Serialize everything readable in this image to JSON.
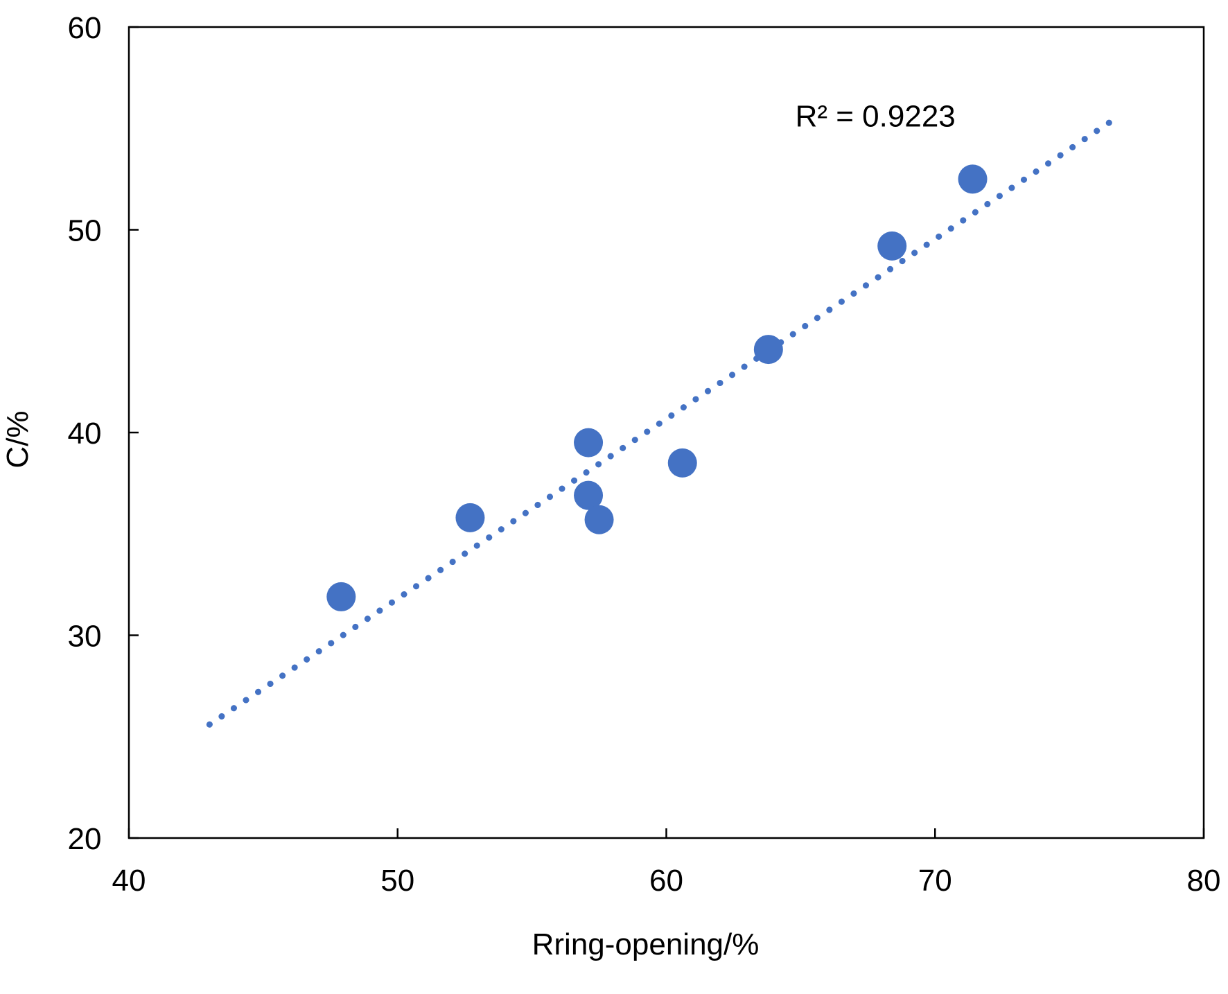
{
  "chart_data": {
    "type": "scatter",
    "title": "",
    "xlabel": "Rring-opening/%",
    "ylabel": "C/%",
    "xlim": [
      40,
      80
    ],
    "ylim": [
      20,
      60
    ],
    "xticks": [
      40,
      50,
      60,
      70,
      80
    ],
    "yticks": [
      20,
      30,
      40,
      50,
      60
    ],
    "grid": false,
    "legend": "none",
    "series": [
      {
        "points": [
          {
            "x": 47.9,
            "y": 31.9
          },
          {
            "x": 52.7,
            "y": 35.8
          },
          {
            "x": 57.1,
            "y": 39.5
          },
          {
            "x": 57.1,
            "y": 36.9
          },
          {
            "x": 57.5,
            "y": 35.7
          },
          {
            "x": 60.6,
            "y": 38.5
          },
          {
            "x": 63.8,
            "y": 44.1
          },
          {
            "x": 68.4,
            "y": 49.2
          },
          {
            "x": 71.4,
            "y": 52.5
          }
        ]
      }
    ],
    "trendline": {
      "style": "dotted",
      "x": [
        43,
        76.5
      ],
      "y": [
        25.6,
        55.3
      ]
    },
    "annotations": [
      {
        "text": "R² = 0.9223",
        "x": 64.8,
        "y": 55.1
      }
    ],
    "colors": {
      "points": "#4472C4",
      "trendline": "#4472C4",
      "axis": "#000000"
    }
  }
}
